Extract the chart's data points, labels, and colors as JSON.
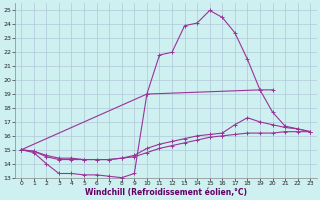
{
  "background_color": "#cff0f0",
  "grid_color": "#b0c8d8",
  "line_color": "#993399",
  "xlabel": "Windchill (Refroidissement éolien,°C)",
  "xlabel_color": "#660066",
  "ylim": [
    13,
    25.5
  ],
  "xlim": [
    -0.5,
    23.5
  ],
  "yticks": [
    13,
    14,
    15,
    16,
    17,
    18,
    19,
    20,
    21,
    22,
    23,
    24,
    25
  ],
  "xticks": [
    0,
    1,
    2,
    3,
    4,
    5,
    6,
    7,
    8,
    9,
    10,
    11,
    12,
    13,
    14,
    15,
    16,
    17,
    18,
    19,
    20,
    21,
    22,
    23
  ],
  "lines": [
    {
      "x": [
        0,
        1,
        2,
        3,
        4,
        5,
        6,
        7,
        8,
        9,
        10,
        19,
        20,
        21,
        22,
        23
      ],
      "y": [
        15,
        14.8,
        14.0,
        13.3,
        13.3,
        13.2,
        13.2,
        13.1,
        13.0,
        13.3,
        19.0,
        19.3,
        17.7,
        16.7,
        16.5,
        16.3
      ]
    },
    {
      "x": [
        0,
        1,
        2,
        3,
        4,
        5,
        6,
        7,
        8,
        9,
        10,
        11,
        12,
        13,
        14,
        15,
        16,
        17,
        18,
        19,
        20,
        21,
        22,
        23
      ],
      "y": [
        15,
        14.9,
        14.5,
        14.3,
        14.3,
        14.3,
        14.3,
        14.3,
        14.4,
        14.5,
        14.8,
        15.1,
        15.3,
        15.5,
        15.7,
        15.9,
        16.0,
        16.1,
        16.2,
        16.2,
        16.2,
        16.3,
        16.3,
        16.3
      ]
    },
    {
      "x": [
        0,
        1,
        2,
        3,
        4,
        5,
        6,
        7,
        8,
        9,
        10,
        11,
        12,
        13,
        14,
        15,
        16,
        17,
        18,
        19,
        20,
        21,
        22,
        23
      ],
      "y": [
        15,
        14.9,
        14.6,
        14.4,
        14.4,
        14.3,
        14.3,
        14.3,
        14.4,
        14.6,
        15.1,
        15.4,
        15.6,
        15.8,
        16.0,
        16.1,
        16.2,
        16.8,
        17.3,
        17.0,
        16.8,
        16.6,
        16.5,
        16.3
      ]
    },
    {
      "x": [
        0,
        10,
        11,
        12,
        13,
        14,
        15,
        16,
        17,
        18,
        19,
        20
      ],
      "y": [
        15,
        19.0,
        21.8,
        22.0,
        23.9,
        24.1,
        25.0,
        24.5,
        23.4,
        21.5,
        19.3,
        19.3
      ]
    }
  ]
}
